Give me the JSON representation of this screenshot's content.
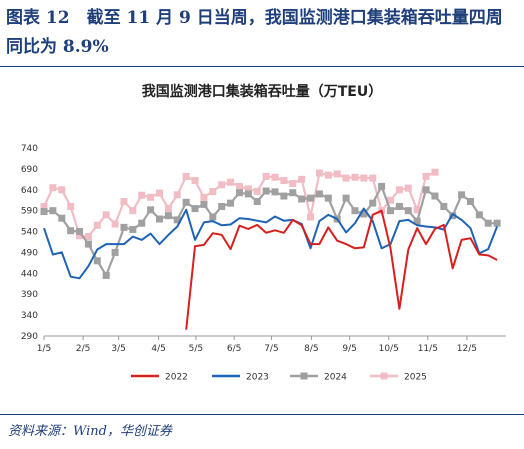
{
  "figure": {
    "title": "图表 12　截至 11 月 9 日当周，我国监测港口集装箱吞吐量四周同比为 8.9%",
    "source": "资料来源：Wind，华创证券"
  },
  "chart_data": {
    "type": "line",
    "title": "我国监测港口集装箱吞吐量（万TEU）",
    "ylim": [
      290,
      740
    ],
    "yticks": [
      290,
      340,
      390,
      440,
      490,
      540,
      590,
      640,
      690,
      740
    ],
    "xlim": [
      0,
      52
    ],
    "xticks": [
      {
        "x": 0,
        "label": "1/5"
      },
      {
        "x": 4.4,
        "label": "2/5"
      },
      {
        "x": 8.4,
        "label": "3/5"
      },
      {
        "x": 12.9,
        "label": "4/5"
      },
      {
        "x": 17.1,
        "label": "5/5"
      },
      {
        "x": 21.4,
        "label": "6/5"
      },
      {
        "x": 25.6,
        "label": "7/5"
      },
      {
        "x": 30.1,
        "label": "8/5"
      },
      {
        "x": 34.4,
        "label": "9/5"
      },
      {
        "x": 38.8,
        "label": "10/5"
      },
      {
        "x": 43.2,
        "label": "11/5"
      },
      {
        "x": 47.6,
        "label": "12/5"
      }
    ],
    "grid": false,
    "legend": "bottom",
    "series": [
      {
        "name": "2022",
        "color": "#d7201e",
        "marker": "none",
        "x": [
          16,
          17,
          18,
          19,
          20,
          21,
          22,
          23,
          24,
          25,
          26,
          27,
          28,
          29,
          30,
          31,
          32,
          33,
          34,
          35,
          36,
          37,
          38,
          39,
          40,
          41,
          42,
          43,
          44,
          45,
          46,
          47,
          48,
          49,
          50,
          51
        ],
        "values": [
          305,
          505,
          508,
          536,
          532,
          498,
          554,
          546,
          556,
          537,
          543,
          537,
          568,
          555,
          510,
          510,
          550,
          518,
          510,
          500,
          502,
          580,
          590,
          500,
          355,
          497,
          548,
          510,
          546,
          556,
          452,
          520,
          524,
          485,
          483,
          472
        ]
      },
      {
        "name": "2023",
        "color": "#1f63b5",
        "marker": "none",
        "x": [
          0,
          1,
          2,
          3,
          4,
          5,
          6,
          7,
          8,
          9,
          10,
          11,
          12,
          13,
          14,
          15,
          16,
          17,
          18,
          19,
          20,
          21,
          22,
          23,
          24,
          25,
          26,
          27,
          28,
          29,
          30,
          31,
          32,
          33,
          34,
          35,
          36,
          37,
          38,
          39,
          40,
          41,
          42,
          43,
          44,
          45,
          46,
          47,
          48,
          49,
          50,
          51
        ],
        "values": [
          548,
          485,
          490,
          432,
          428,
          457,
          497,
          510,
          510,
          510,
          528,
          520,
          535,
          510,
          532,
          552,
          592,
          520,
          562,
          565,
          555,
          557,
          572,
          570,
          566,
          562,
          576,
          566,
          568,
          558,
          500,
          565,
          580,
          570,
          538,
          560,
          595,
          565,
          500,
          510,
          565,
          568,
          555,
          552,
          550,
          545,
          582,
          568,
          548,
          488,
          498,
          552
        ]
      },
      {
        "name": "2024",
        "color": "#a0a0a0",
        "marker": "square",
        "x": [
          0,
          1,
          2,
          3,
          4,
          5,
          6,
          7,
          8,
          9,
          10,
          11,
          12,
          13,
          14,
          15,
          16,
          17,
          18,
          19,
          20,
          21,
          22,
          23,
          24,
          25,
          26,
          27,
          28,
          29,
          30,
          31,
          32,
          33,
          34,
          35,
          36,
          37,
          38,
          39,
          40,
          41,
          42,
          43,
          44,
          45,
          46,
          47,
          48,
          49,
          50,
          51
        ],
        "values": [
          588,
          590,
          572,
          542,
          540,
          510,
          470,
          435,
          490,
          550,
          545,
          560,
          592,
          570,
          578,
          568,
          610,
          595,
          605,
          575,
          600,
          608,
          633,
          630,
          612,
          637,
          635,
          625,
          633,
          618,
          620,
          630,
          620,
          570,
          620,
          590,
          582,
          608,
          648,
          590,
          600,
          590,
          565,
          640,
          625,
          600,
          578,
          628,
          612,
          580,
          560,
          560
        ]
      },
      {
        "name": "2025",
        "color": "#f2bcc4",
        "marker": "square",
        "x": [
          0,
          1,
          2,
          3,
          4,
          5,
          6,
          7,
          8,
          9,
          10,
          11,
          12,
          13,
          14,
          15,
          16,
          17,
          18,
          19,
          20,
          21,
          22,
          23,
          24,
          25,
          26,
          27,
          28,
          29,
          30,
          31,
          32,
          33,
          34,
          35,
          36,
          37,
          38,
          39,
          40,
          41,
          42,
          43,
          44
        ],
        "values": [
          600,
          645,
          640,
          600,
          530,
          528,
          555,
          580,
          558,
          612,
          590,
          627,
          622,
          632,
          595,
          628,
          672,
          662,
          622,
          636,
          652,
          658,
          648,
          642,
          636,
          672,
          670,
          662,
          655,
          665,
          575,
          680,
          675,
          678,
          668,
          670,
          668,
          668,
          590,
          615,
          640,
          644,
          592,
          672,
          682
        ]
      }
    ]
  }
}
